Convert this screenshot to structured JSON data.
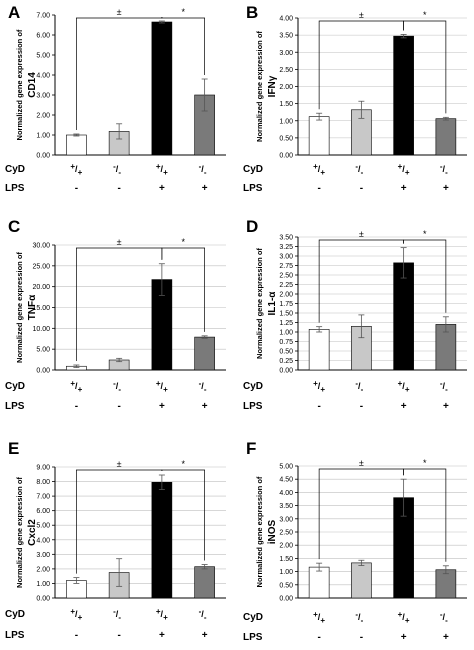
{
  "colors": {
    "white_bar": "#ffffff",
    "light_gray_bar": "#c8c8c8",
    "black_bar": "#000000",
    "dark_gray_bar": "#7a7a7a",
    "axis": "#000000",
    "gridline": "#bfbfbf"
  },
  "row_labels": {
    "cyd": "CyD",
    "lps": "LPS"
  },
  "genotypes": [
    {
      "main": "+",
      "slash": "/",
      "sub": "+"
    },
    {
      "main": "-",
      "slash": "/",
      "sub": "-"
    },
    {
      "main": "+",
      "slash": "/",
      "sub": "+"
    },
    {
      "main": "-",
      "slash": "/",
      "sub": "-"
    }
  ],
  "lps_values": [
    "-",
    "-",
    "+",
    "+"
  ],
  "chart_data": [
    {
      "type": "bar",
      "panel": "A",
      "ylabel_line1": "Normalized gene expression of",
      "ylabel_line2": "CD14",
      "ylim": [
        0,
        7
      ],
      "yticks": [
        "0.00",
        "1.00",
        "2.00",
        "3.00",
        "4.00",
        "5.00",
        "6.00",
        "7.00"
      ],
      "gridlines": false,
      "values": [
        1.0,
        1.18,
        6.65,
        3.0
      ],
      "errors": [
        0.05,
        0.38,
        0.05,
        0.8
      ],
      "sig_left": "±",
      "sig_right": "*"
    },
    {
      "type": "bar",
      "panel": "B",
      "ylabel_line1": "Normalized gene expression of",
      "ylabel_line2": "IFNγ",
      "ylim": [
        0,
        4
      ],
      "yticks": [
        "0.00",
        "0.50",
        "1.00",
        "1.50",
        "2.00",
        "2.50",
        "3.00",
        "3.50",
        "4.00"
      ],
      "gridlines": true,
      "values": [
        1.12,
        1.32,
        3.47,
        1.06
      ],
      "errors": [
        0.1,
        0.25,
        0.05,
        0.04
      ],
      "sig_left": "±",
      "sig_right": "*"
    },
    {
      "type": "bar",
      "panel": "C",
      "ylabel_line1": "Normalized gene expression of",
      "ylabel_line2": "TNFα",
      "ylim": [
        0,
        30
      ],
      "yticks": [
        "0.00",
        "5.00",
        "10.00",
        "15.00",
        "20.00",
        "25.00",
        "30.00"
      ],
      "gridlines": true,
      "values": [
        0.9,
        2.4,
        21.7,
        7.9
      ],
      "errors": [
        0.3,
        0.4,
        3.8,
        0.3
      ],
      "sig_left": "±",
      "sig_right": "*"
    },
    {
      "type": "bar",
      "panel": "D",
      "ylabel_line1": "Normalized gene expression of",
      "ylabel_line2": "IL1-α",
      "ylim": [
        0,
        3.5
      ],
      "yticks": [
        "0.00",
        "0.25",
        "0.50",
        "0.75",
        "1.00",
        "1.25",
        "1.50",
        "1.75",
        "2.00",
        "2.25",
        "2.50",
        "2.75",
        "3.00",
        "3.25",
        "3.50"
      ],
      "gridlines": true,
      "values": [
        1.07,
        1.15,
        2.82,
        1.2
      ],
      "errors": [
        0.07,
        0.3,
        0.4,
        0.2
      ],
      "sig_left": "±",
      "sig_right": "*"
    },
    {
      "type": "bar",
      "panel": "E",
      "ylabel_line1": "Normalized gene expression of",
      "ylabel_line2": "Cxcl2",
      "ylim": [
        0,
        9
      ],
      "yticks": [
        "0.00",
        "1.00",
        "2.00",
        "3.00",
        "4.00",
        "5.00",
        "6.00",
        "7.00",
        "8.00",
        "9.00"
      ],
      "gridlines": true,
      "values": [
        1.2,
        1.75,
        7.95,
        2.15
      ],
      "errors": [
        0.2,
        0.95,
        0.5,
        0.15
      ],
      "sig_left": "±",
      "sig_right": "*"
    },
    {
      "type": "bar",
      "panel": "F",
      "ylabel_line1": "Normalized gene expression of",
      "ylabel_line2": "iNOS",
      "ylim": [
        0,
        5
      ],
      "yticks": [
        "0.00",
        "0.50",
        "1.00",
        "1.50",
        "2.00",
        "2.50",
        "3.00",
        "3.50",
        "4.00",
        "4.50",
        "5.00"
      ],
      "gridlines": true,
      "values": [
        1.17,
        1.33,
        3.8,
        1.07
      ],
      "errors": [
        0.15,
        0.1,
        0.7,
        0.15
      ],
      "sig_left": "±",
      "sig_right": "*"
    }
  ]
}
